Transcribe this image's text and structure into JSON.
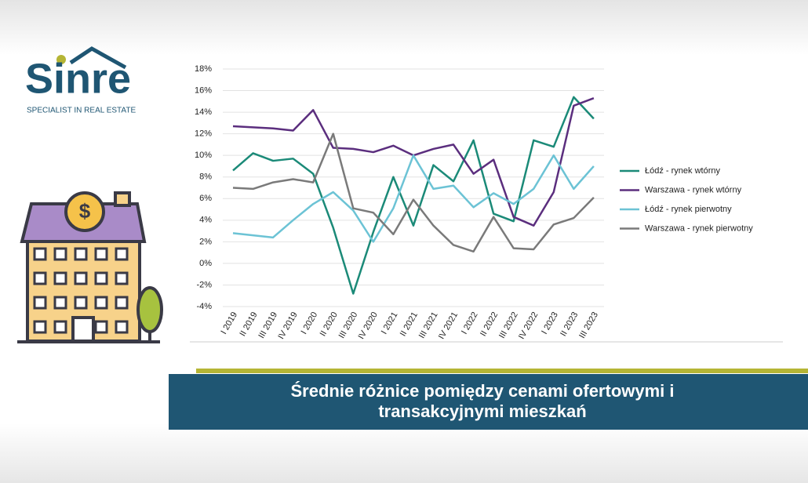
{
  "logo": {
    "name": "Sinre",
    "tagline": "SPECIALIST IN REAL ESTATE"
  },
  "chart_data": {
    "type": "line",
    "title": "Średnie różnice pomiędzy cenami ofertowymi i transakcyjnymi mieszkań",
    "categories": [
      "I 2019",
      "II 2019",
      "III 2019",
      "IV 2019",
      "I 2020",
      "II 2020",
      "III 2020",
      "IV 2020",
      "I 2021",
      "II 2021",
      "III 2021",
      "IV 2021",
      "I 2022",
      "II 2022",
      "III 2022",
      "IV 2022",
      "I 2023",
      "II 2023",
      "III 2023"
    ],
    "series": [
      {
        "name": "Łódź - rynek wtórny",
        "color": "#1b8a78",
        "values": [
          8.6,
          10.2,
          9.5,
          9.7,
          8.3,
          3.3,
          -2.8,
          2.9,
          8.0,
          3.5,
          9.1,
          7.6,
          11.4,
          4.6,
          3.9,
          11.4,
          10.8,
          15.4,
          13.4
        ]
      },
      {
        "name": "Warszawa - rynek wtórny",
        "color": "#5b2e7e",
        "values": [
          12.7,
          12.6,
          12.5,
          12.3,
          14.2,
          10.7,
          10.6,
          10.3,
          10.9,
          10.0,
          10.6,
          11.0,
          8.3,
          9.6,
          4.3,
          3.5,
          6.6,
          14.6,
          15.3
        ]
      },
      {
        "name": "Łódź - rynek pierwotny",
        "color": "#6cc3d5",
        "values": [
          2.8,
          2.6,
          2.4,
          4.0,
          5.5,
          6.6,
          4.9,
          2.0,
          5.1,
          10.0,
          6.9,
          7.2,
          5.2,
          6.5,
          5.5,
          6.9,
          10.0,
          6.9,
          9.0
        ]
      },
      {
        "name": "Warszawa - rynek pierwotny",
        "color": "#7a7a7a",
        "values": [
          7.0,
          6.9,
          7.5,
          7.8,
          7.5,
          12.0,
          5.1,
          4.7,
          2.7,
          5.9,
          3.5,
          1.7,
          1.1,
          4.3,
          1.4,
          1.3,
          3.6,
          4.2,
          6.1
        ]
      }
    ],
    "ylim": [
      -4,
      18
    ],
    "yticks": [
      {
        "value": -4,
        "label": "-4%"
      },
      {
        "value": -2,
        "label": "-2%"
      },
      {
        "value": 0,
        "label": "0%"
      },
      {
        "value": 2,
        "label": "2%"
      },
      {
        "value": 4,
        "label": "4%"
      },
      {
        "value": 6,
        "label": "6%"
      },
      {
        "value": 8,
        "label": "8%"
      },
      {
        "value": 10,
        "label": "10%"
      },
      {
        "value": 12,
        "label": "12%"
      },
      {
        "value": 14,
        "label": "14%"
      },
      {
        "value": 16,
        "label": "16%"
      },
      {
        "value": 18,
        "label": "18%"
      }
    ],
    "grid": true,
    "legend": "right"
  }
}
